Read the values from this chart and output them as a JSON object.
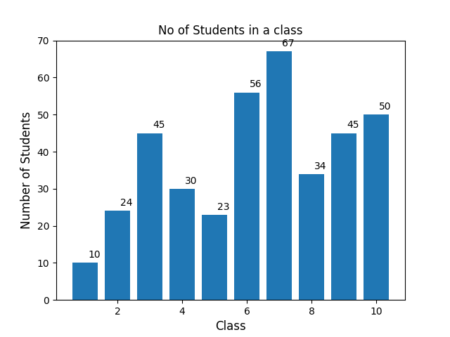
{
  "x": [
    1,
    2,
    3,
    4,
    5,
    6,
    7,
    8,
    9,
    10
  ],
  "values": [
    10,
    24,
    45,
    30,
    23,
    56,
    67,
    34,
    45,
    50
  ],
  "bar_color": "#2077b4",
  "title": "No of Students in a class",
  "xlabel": "Class",
  "ylabel": "Number of Students",
  "ylim": [
    0,
    70
  ],
  "title_fontsize": 12,
  "label_fontsize": 10,
  "axis_label_fontsize": 12
}
